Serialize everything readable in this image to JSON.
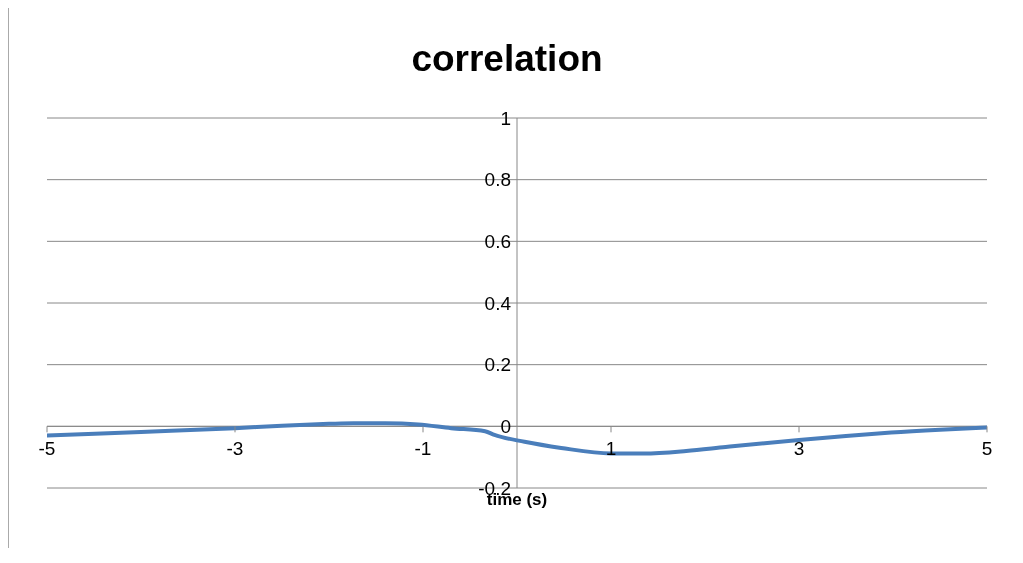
{
  "chart_data": {
    "type": "line",
    "title": "correlation",
    "xlabel": "time (s)",
    "x": [
      -5,
      -4,
      -3,
      -2.5,
      -2,
      -1.74,
      -1.4,
      -1.05,
      -0.7,
      -0.34,
      -0.24,
      0.08,
      0.47,
      1.0,
      1.35,
      1.8,
      2.22,
      3.0,
      3.5,
      3.98,
      4.5,
      5
    ],
    "series": [
      {
        "color": "#4a7ebb",
        "values": [
          -0.03,
          -0.018,
          -0.006,
          0.002,
          0.008,
          0.01,
          0.01,
          0.006,
          -0.006,
          -0.016,
          -0.028,
          -0.05,
          -0.07,
          -0.088,
          -0.088,
          -0.08,
          -0.067,
          -0.044,
          -0.031,
          -0.02,
          -0.011,
          -0.004
        ]
      }
    ],
    "xlim": [
      -5,
      5
    ],
    "xticks": [
      -5,
      -3,
      -1,
      1,
      3,
      5
    ],
    "ylim": [
      -0.2,
      1
    ],
    "yticks": [
      -0.2,
      0,
      0.2,
      0.4,
      0.6,
      0.8,
      1
    ],
    "grid": "y",
    "legend": false,
    "marker": "none",
    "line_style": "solid"
  }
}
